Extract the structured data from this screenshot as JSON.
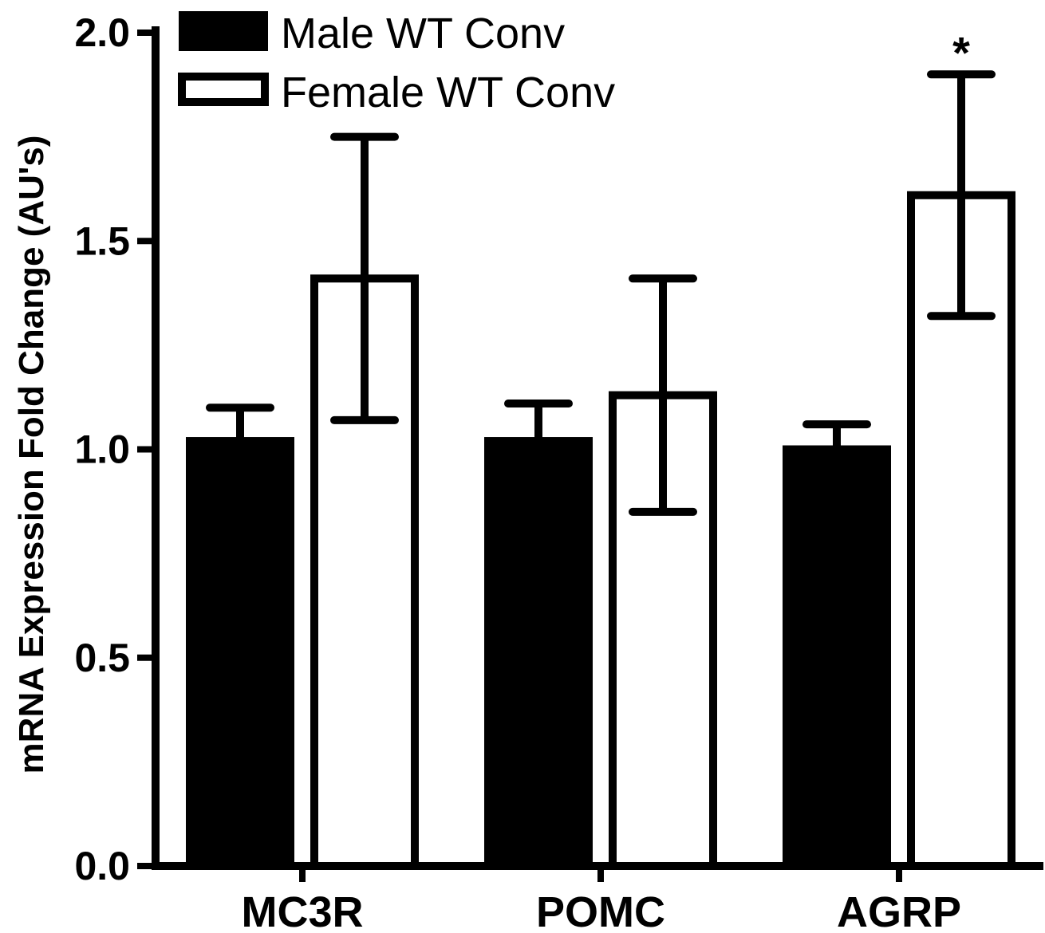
{
  "chart_data": {
    "type": "bar",
    "ylabel": "mRNA Expression Fold Change (AU's)",
    "xlabel": "",
    "ylim": [
      0,
      2.0
    ],
    "yticks": [
      "0.0",
      "0.5",
      "1.0",
      "1.5",
      "2.0"
    ],
    "categories": [
      "MC3R",
      "POMC",
      "AGRP"
    ],
    "series": [
      {
        "name": "Male WT Conv",
        "fill": "#000000",
        "values": [
          1.02,
          1.02,
          1.0
        ],
        "errors": [
          0.08,
          0.09,
          0.06
        ]
      },
      {
        "name": "Female WT Conv",
        "fill": "#ffffff",
        "values": [
          1.41,
          1.13,
          1.61
        ],
        "errors": [
          0.34,
          0.28,
          0.29
        ]
      }
    ],
    "annotations": [
      {
        "category": "AGRP",
        "series": 1,
        "text": "*"
      }
    ],
    "legend": {
      "position": "top-left"
    },
    "grid": false
  }
}
